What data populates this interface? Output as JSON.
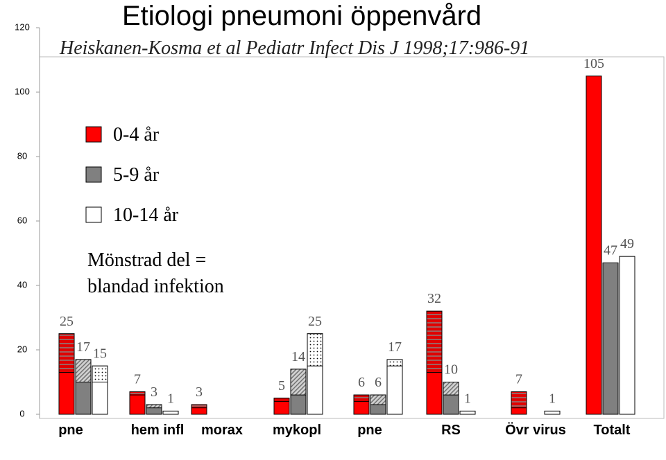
{
  "chart_data": {
    "type": "bar",
    "title": "Etiologi pneumoni öppenvård",
    "subtitle": "Heiskanen-Kosma et al Pediatr Infect Dis J 1998;17:986-91",
    "annotation": [
      "Mönstrad del =",
      "blandad infektion"
    ],
    "categories": [
      "pne",
      "hem infl",
      "morax",
      "mykopl",
      "pne",
      "RS",
      "Övr virus",
      "Totalt"
    ],
    "series": [
      {
        "name": "0-4 år",
        "color": "#ff0000",
        "values": [
          25,
          7,
          3,
          5,
          6,
          32,
          7,
          105
        ],
        "mixed": [
          12,
          1,
          1,
          1,
          2,
          19,
          5,
          0
        ]
      },
      {
        "name": "5-9 år",
        "color": "#808080",
        "values": [
          17,
          3,
          null,
          14,
          6,
          10,
          null,
          47
        ],
        "mixed": [
          7,
          1,
          null,
          8,
          3,
          4,
          null,
          0
        ]
      },
      {
        "name": "10-14 år",
        "color": "#ffffff",
        "values": [
          15,
          1,
          null,
          25,
          17,
          1,
          1,
          49
        ],
        "mixed": [
          5,
          0,
          null,
          10,
          2,
          0,
          0,
          0
        ]
      }
    ],
    "ylim": [
      0,
      120
    ],
    "yticks": [
      0,
      20,
      40,
      60,
      80,
      100,
      120
    ]
  }
}
